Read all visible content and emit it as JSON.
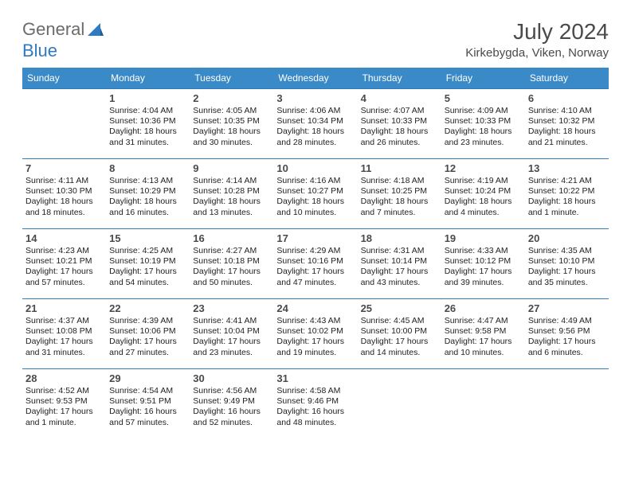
{
  "logo": {
    "textA": "General",
    "textB": "Blue"
  },
  "title": "July 2024",
  "location": "Kirkebygda, Viken, Norway",
  "colors": {
    "accent": "#3a8ac8",
    "rule": "#2f7ac0",
    "logoGray": "#6b6b6b",
    "logoBlue": "#2f7ac0",
    "heading": "#4a4a4a"
  },
  "weekdays": [
    "Sunday",
    "Monday",
    "Tuesday",
    "Wednesday",
    "Thursday",
    "Friday",
    "Saturday"
  ],
  "weeks": [
    [
      null,
      {
        "d": "1",
        "sr": "4:04 AM",
        "ss": "10:36 PM",
        "dl": "18 hours and 31 minutes."
      },
      {
        "d": "2",
        "sr": "4:05 AM",
        "ss": "10:35 PM",
        "dl": "18 hours and 30 minutes."
      },
      {
        "d": "3",
        "sr": "4:06 AM",
        "ss": "10:34 PM",
        "dl": "18 hours and 28 minutes."
      },
      {
        "d": "4",
        "sr": "4:07 AM",
        "ss": "10:33 PM",
        "dl": "18 hours and 26 minutes."
      },
      {
        "d": "5",
        "sr": "4:09 AM",
        "ss": "10:33 PM",
        "dl": "18 hours and 23 minutes."
      },
      {
        "d": "6",
        "sr": "4:10 AM",
        "ss": "10:32 PM",
        "dl": "18 hours and 21 minutes."
      }
    ],
    [
      {
        "d": "7",
        "sr": "4:11 AM",
        "ss": "10:30 PM",
        "dl": "18 hours and 18 minutes."
      },
      {
        "d": "8",
        "sr": "4:13 AM",
        "ss": "10:29 PM",
        "dl": "18 hours and 16 minutes."
      },
      {
        "d": "9",
        "sr": "4:14 AM",
        "ss": "10:28 PM",
        "dl": "18 hours and 13 minutes."
      },
      {
        "d": "10",
        "sr": "4:16 AM",
        "ss": "10:27 PM",
        "dl": "18 hours and 10 minutes."
      },
      {
        "d": "11",
        "sr": "4:18 AM",
        "ss": "10:25 PM",
        "dl": "18 hours and 7 minutes."
      },
      {
        "d": "12",
        "sr": "4:19 AM",
        "ss": "10:24 PM",
        "dl": "18 hours and 4 minutes."
      },
      {
        "d": "13",
        "sr": "4:21 AM",
        "ss": "10:22 PM",
        "dl": "18 hours and 1 minute."
      }
    ],
    [
      {
        "d": "14",
        "sr": "4:23 AM",
        "ss": "10:21 PM",
        "dl": "17 hours and 57 minutes."
      },
      {
        "d": "15",
        "sr": "4:25 AM",
        "ss": "10:19 PM",
        "dl": "17 hours and 54 minutes."
      },
      {
        "d": "16",
        "sr": "4:27 AM",
        "ss": "10:18 PM",
        "dl": "17 hours and 50 minutes."
      },
      {
        "d": "17",
        "sr": "4:29 AM",
        "ss": "10:16 PM",
        "dl": "17 hours and 47 minutes."
      },
      {
        "d": "18",
        "sr": "4:31 AM",
        "ss": "10:14 PM",
        "dl": "17 hours and 43 minutes."
      },
      {
        "d": "19",
        "sr": "4:33 AM",
        "ss": "10:12 PM",
        "dl": "17 hours and 39 minutes."
      },
      {
        "d": "20",
        "sr": "4:35 AM",
        "ss": "10:10 PM",
        "dl": "17 hours and 35 minutes."
      }
    ],
    [
      {
        "d": "21",
        "sr": "4:37 AM",
        "ss": "10:08 PM",
        "dl": "17 hours and 31 minutes."
      },
      {
        "d": "22",
        "sr": "4:39 AM",
        "ss": "10:06 PM",
        "dl": "17 hours and 27 minutes."
      },
      {
        "d": "23",
        "sr": "4:41 AM",
        "ss": "10:04 PM",
        "dl": "17 hours and 23 minutes."
      },
      {
        "d": "24",
        "sr": "4:43 AM",
        "ss": "10:02 PM",
        "dl": "17 hours and 19 minutes."
      },
      {
        "d": "25",
        "sr": "4:45 AM",
        "ss": "10:00 PM",
        "dl": "17 hours and 14 minutes."
      },
      {
        "d": "26",
        "sr": "4:47 AM",
        "ss": "9:58 PM",
        "dl": "17 hours and 10 minutes."
      },
      {
        "d": "27",
        "sr": "4:49 AM",
        "ss": "9:56 PM",
        "dl": "17 hours and 6 minutes."
      }
    ],
    [
      {
        "d": "28",
        "sr": "4:52 AM",
        "ss": "9:53 PM",
        "dl": "17 hours and 1 minute."
      },
      {
        "d": "29",
        "sr": "4:54 AM",
        "ss": "9:51 PM",
        "dl": "16 hours and 57 minutes."
      },
      {
        "d": "30",
        "sr": "4:56 AM",
        "ss": "9:49 PM",
        "dl": "16 hours and 52 minutes."
      },
      {
        "d": "31",
        "sr": "4:58 AM",
        "ss": "9:46 PM",
        "dl": "16 hours and 48 minutes."
      },
      null,
      null,
      null
    ]
  ],
  "labels": {
    "sunrise": "Sunrise:",
    "sunset": "Sunset:",
    "daylight": "Daylight:"
  }
}
